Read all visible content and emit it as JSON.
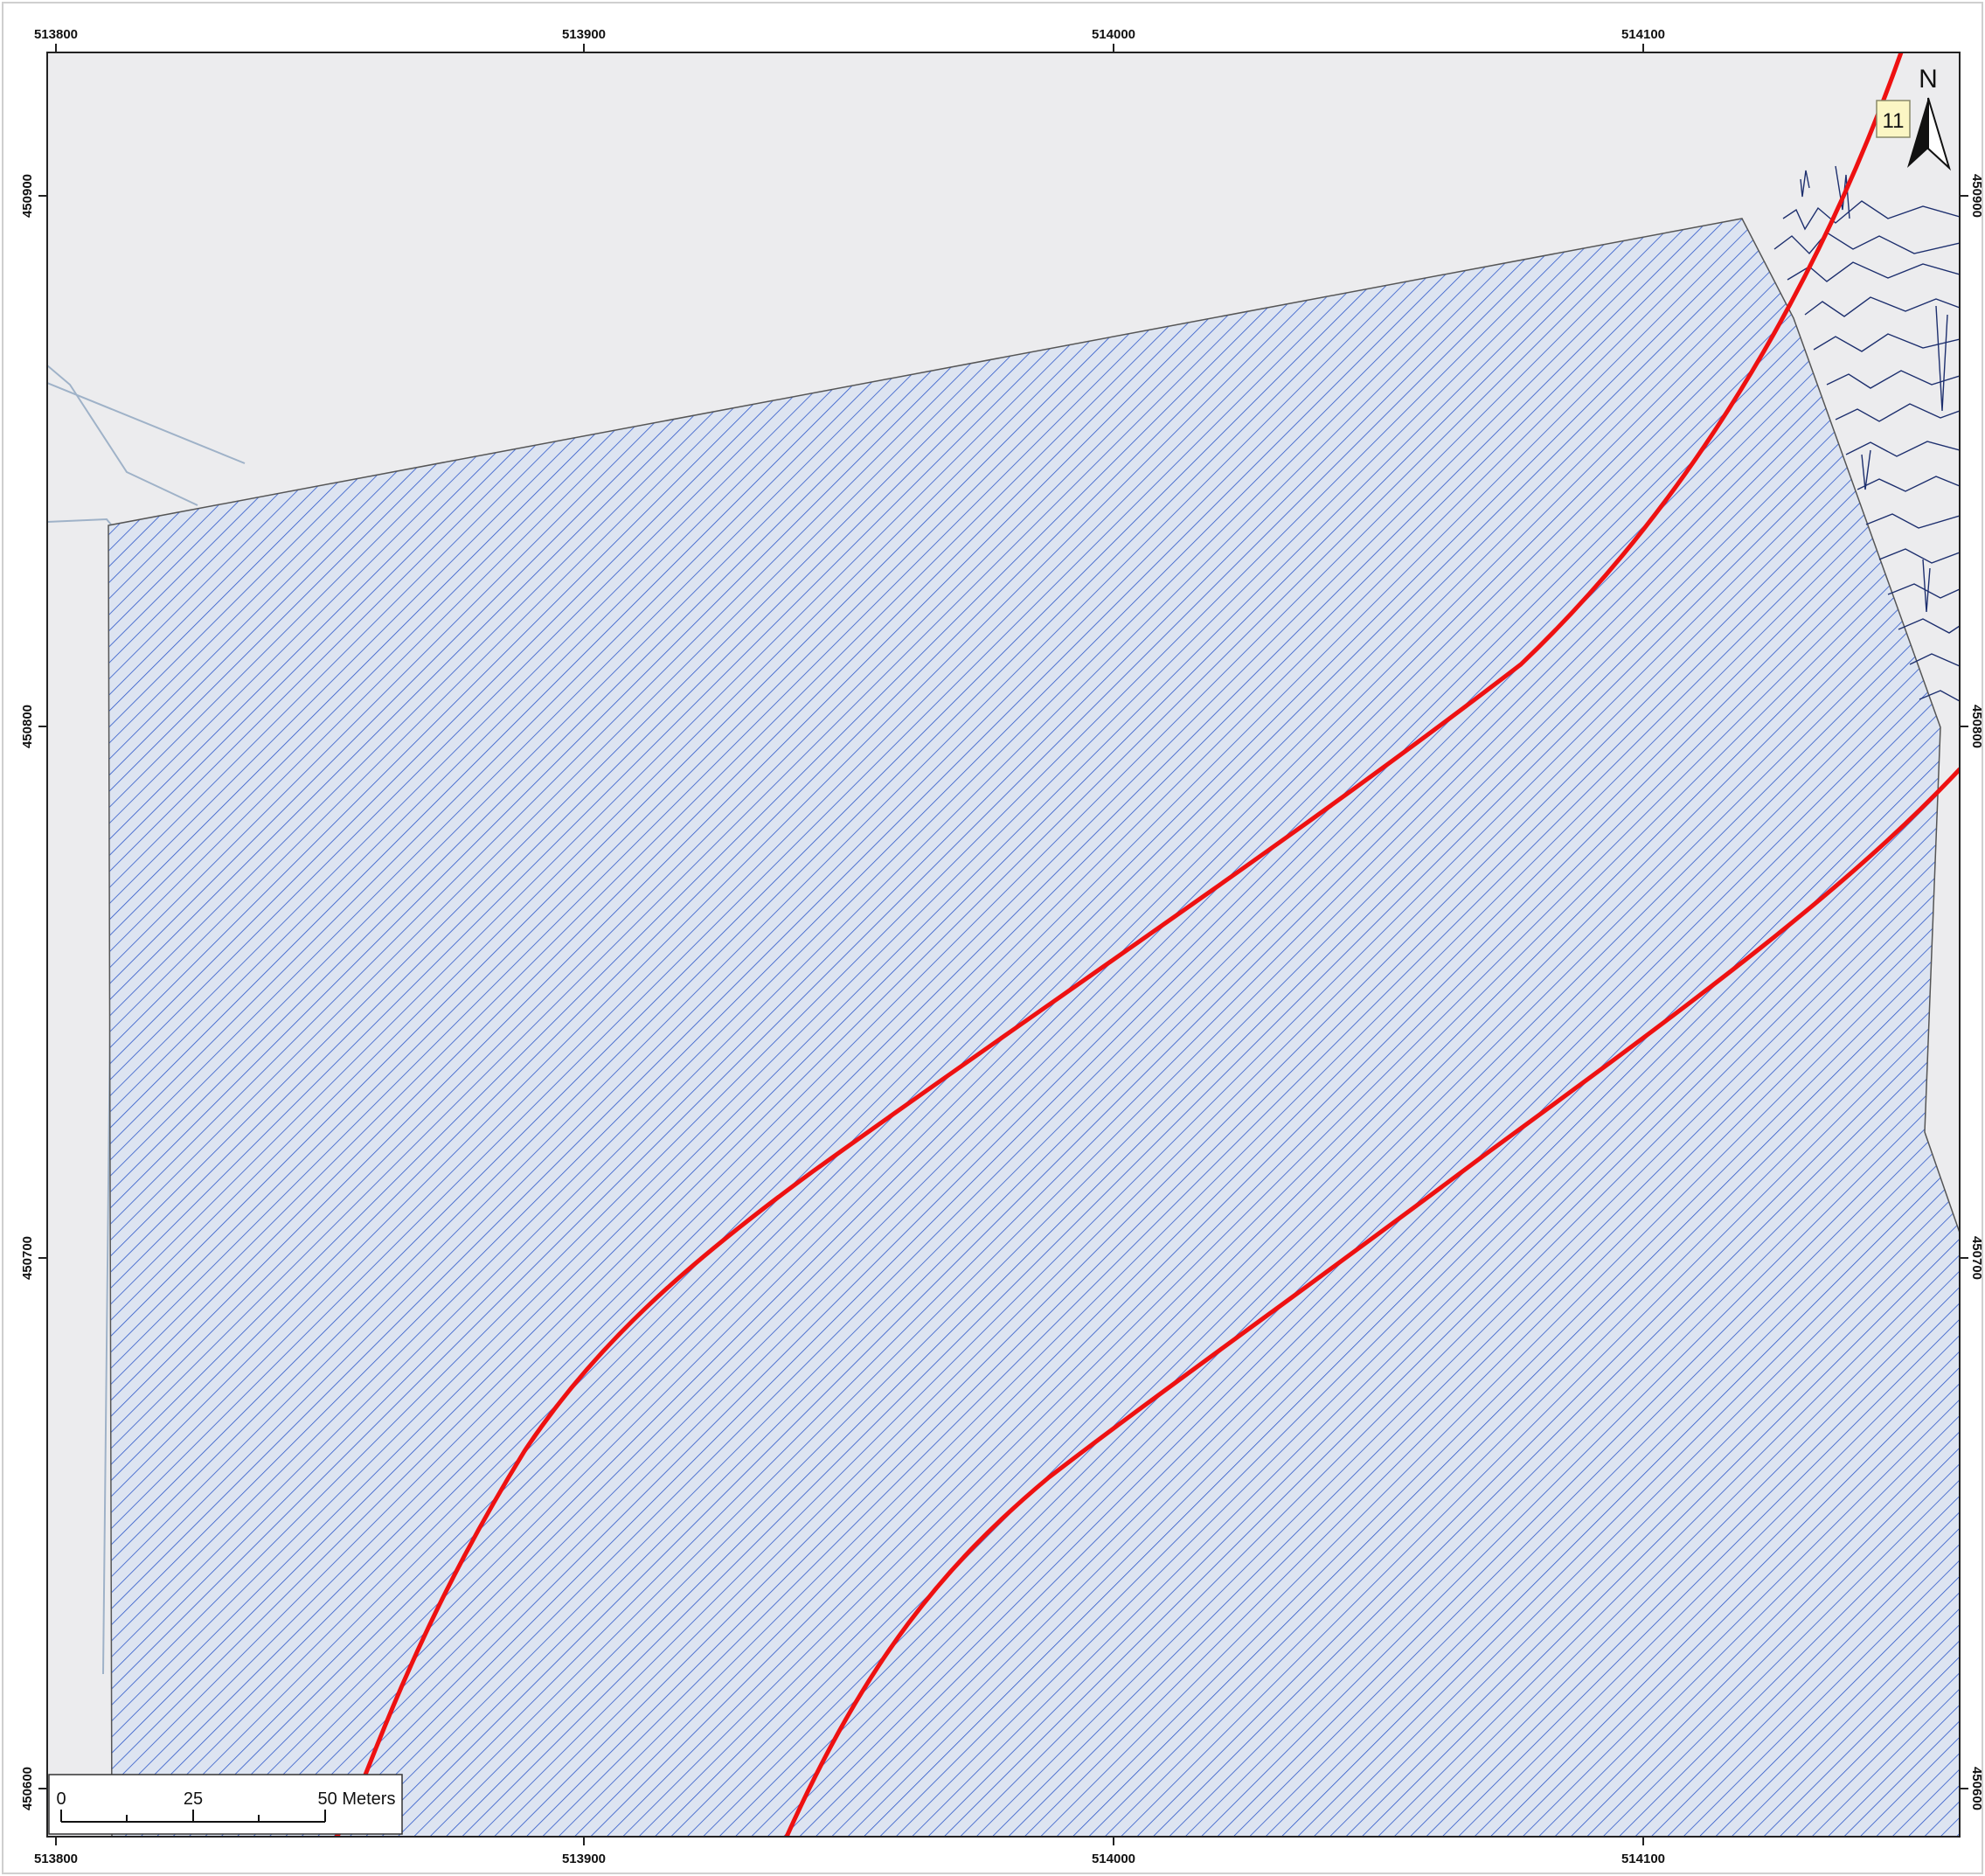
{
  "map": {
    "x_ticks": [
      "513800",
      "513900",
      "514000",
      "514100"
    ],
    "y_ticks": [
      "450900",
      "450800",
      "450700",
      "450600"
    ],
    "north_label": "N",
    "feature_label": "11",
    "scale_bar": {
      "labels": [
        "0",
        "25",
        "50 Meters"
      ]
    },
    "colors": {
      "background": "#ececee",
      "hatch": "#2f59c9",
      "boundary": "#555555",
      "road": "#ee1111",
      "contour": "#1d2f6e",
      "light_line": "#9fb2c8",
      "label_box": "#fbf6c4"
    }
  }
}
